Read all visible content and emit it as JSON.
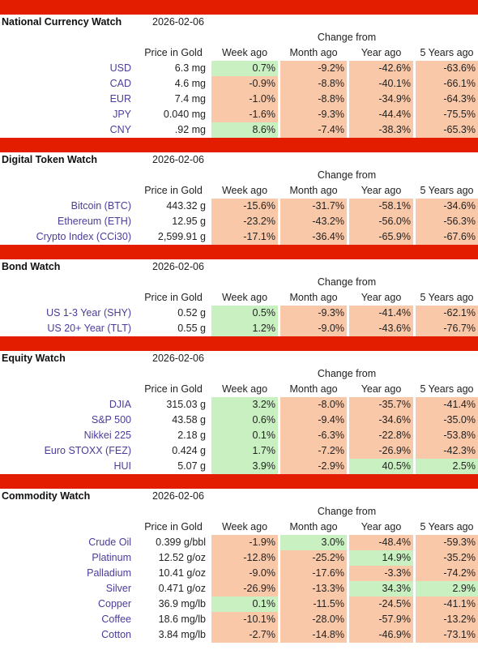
{
  "columns": {
    "change_from": "Change from",
    "price": "Price in Gold",
    "week": "Week ago",
    "month": "Month ago",
    "year": "Year ago",
    "five": "5 Years ago"
  },
  "sections": [
    {
      "title": "National Currency Watch",
      "date": "2026-02-06",
      "rows": [
        {
          "name": "USD",
          "price": "6.3 mg",
          "week": "0.7%",
          "month": "-9.2%",
          "year": "-42.6%",
          "five": "-63.6%"
        },
        {
          "name": "CAD",
          "price": "4.6 mg",
          "week": "-0.9%",
          "month": "-8.8%",
          "year": "-40.1%",
          "five": "-66.1%"
        },
        {
          "name": "EUR",
          "price": "7.4 mg",
          "week": "-1.0%",
          "month": "-8.8%",
          "year": "-34.9%",
          "five": "-64.3%"
        },
        {
          "name": "JPY",
          "price": "0.040 mg",
          "week": "-1.6%",
          "month": "-9.3%",
          "year": "-44.4%",
          "five": "-75.5%"
        },
        {
          "name": "CNY",
          "price": ".92 mg",
          "week": "8.6%",
          "month": "-7.4%",
          "year": "-38.3%",
          "five": "-65.3%"
        }
      ]
    },
    {
      "title": "Digital Token Watch",
      "date": "2026-02-06",
      "rows": [
        {
          "name": "Bitcoin (BTC)",
          "price": "443.32 g",
          "week": "-15.6%",
          "month": "-31.7%",
          "year": "-58.1%",
          "five": "-34.6%"
        },
        {
          "name": "Ethereum (ETH)",
          "price": "12.95 g",
          "week": "-23.2%",
          "month": "-43.2%",
          "year": "-56.0%",
          "five": "-56.3%"
        },
        {
          "name": "Crypto Index (CCi30)",
          "price": "2,599.91 g",
          "week": "-17.1%",
          "month": "-36.4%",
          "year": "-65.9%",
          "five": "-67.6%"
        }
      ]
    },
    {
      "title": "Bond Watch",
      "date": "2026-02-06",
      "rows": [
        {
          "name": "US 1-3 Year (SHY)",
          "price": "0.52 g",
          "week": "0.5%",
          "month": "-9.3%",
          "year": "-41.4%",
          "five": "-62.1%"
        },
        {
          "name": "US 20+ Year (TLT)",
          "price": "0.55 g",
          "week": "1.2%",
          "month": "-9.0%",
          "year": "-43.6%",
          "five": "-76.7%"
        }
      ]
    },
    {
      "title": "Equity Watch",
      "date": "2026-02-06",
      "rows": [
        {
          "name": "DJIA",
          "price": "315.03 g",
          "week": "3.2%",
          "month": "-8.0%",
          "year": "-35.7%",
          "five": "-41.4%"
        },
        {
          "name": "S&P 500",
          "price": "43.58 g",
          "week": "0.6%",
          "month": "-9.4%",
          "year": "-34.6%",
          "five": "-35.0%"
        },
        {
          "name": "Nikkei 225",
          "price": "2.18 g",
          "week": "0.1%",
          "month": "-6.3%",
          "year": "-22.8%",
          "five": "-53.8%"
        },
        {
          "name": "Euro STOXX (FEZ)",
          "price": "0.424 g",
          "week": "1.7%",
          "month": "-7.2%",
          "year": "-26.9%",
          "five": "-42.3%"
        },
        {
          "name": "HUI",
          "price": "5.07 g",
          "week": "3.9%",
          "month": "-2.9%",
          "year": "40.5%",
          "five": "2.5%"
        }
      ]
    },
    {
      "title": "Commodity Watch",
      "date": "2026-02-06",
      "rows": [
        {
          "name": "Crude Oil",
          "price": "0.399 g/bbl",
          "week": "-1.9%",
          "month": "3.0%",
          "year": "-48.4%",
          "five": "-59.3%"
        },
        {
          "name": "Platinum",
          "price": "12.52 g/oz",
          "week": "-12.8%",
          "month": "-25.2%",
          "year": "14.9%",
          "five": "-35.2%"
        },
        {
          "name": "Palladium",
          "price": "10.41 g/oz",
          "week": "-9.0%",
          "month": "-17.6%",
          "year": "-3.3%",
          "five": "-74.2%"
        },
        {
          "name": "Silver",
          "price": "0.471 g/oz",
          "week": "-26.9%",
          "month": "-13.3%",
          "year": "34.3%",
          "five": "2.9%"
        },
        {
          "name": "Copper",
          "price": "36.9 mg/lb",
          "week": "0.1%",
          "month": "-11.5%",
          "year": "-24.5%",
          "five": "-41.1%"
        },
        {
          "name": "Coffee",
          "price": "18.6 mg/lb",
          "week": "-10.1%",
          "month": "-28.0%",
          "year": "-57.9%",
          "five": "-13.2%"
        },
        {
          "name": "Cotton",
          "price": "3.84 mg/lb",
          "week": "-2.7%",
          "month": "-14.8%",
          "year": "-46.9%",
          "five": "-73.1%"
        }
      ]
    }
  ]
}
